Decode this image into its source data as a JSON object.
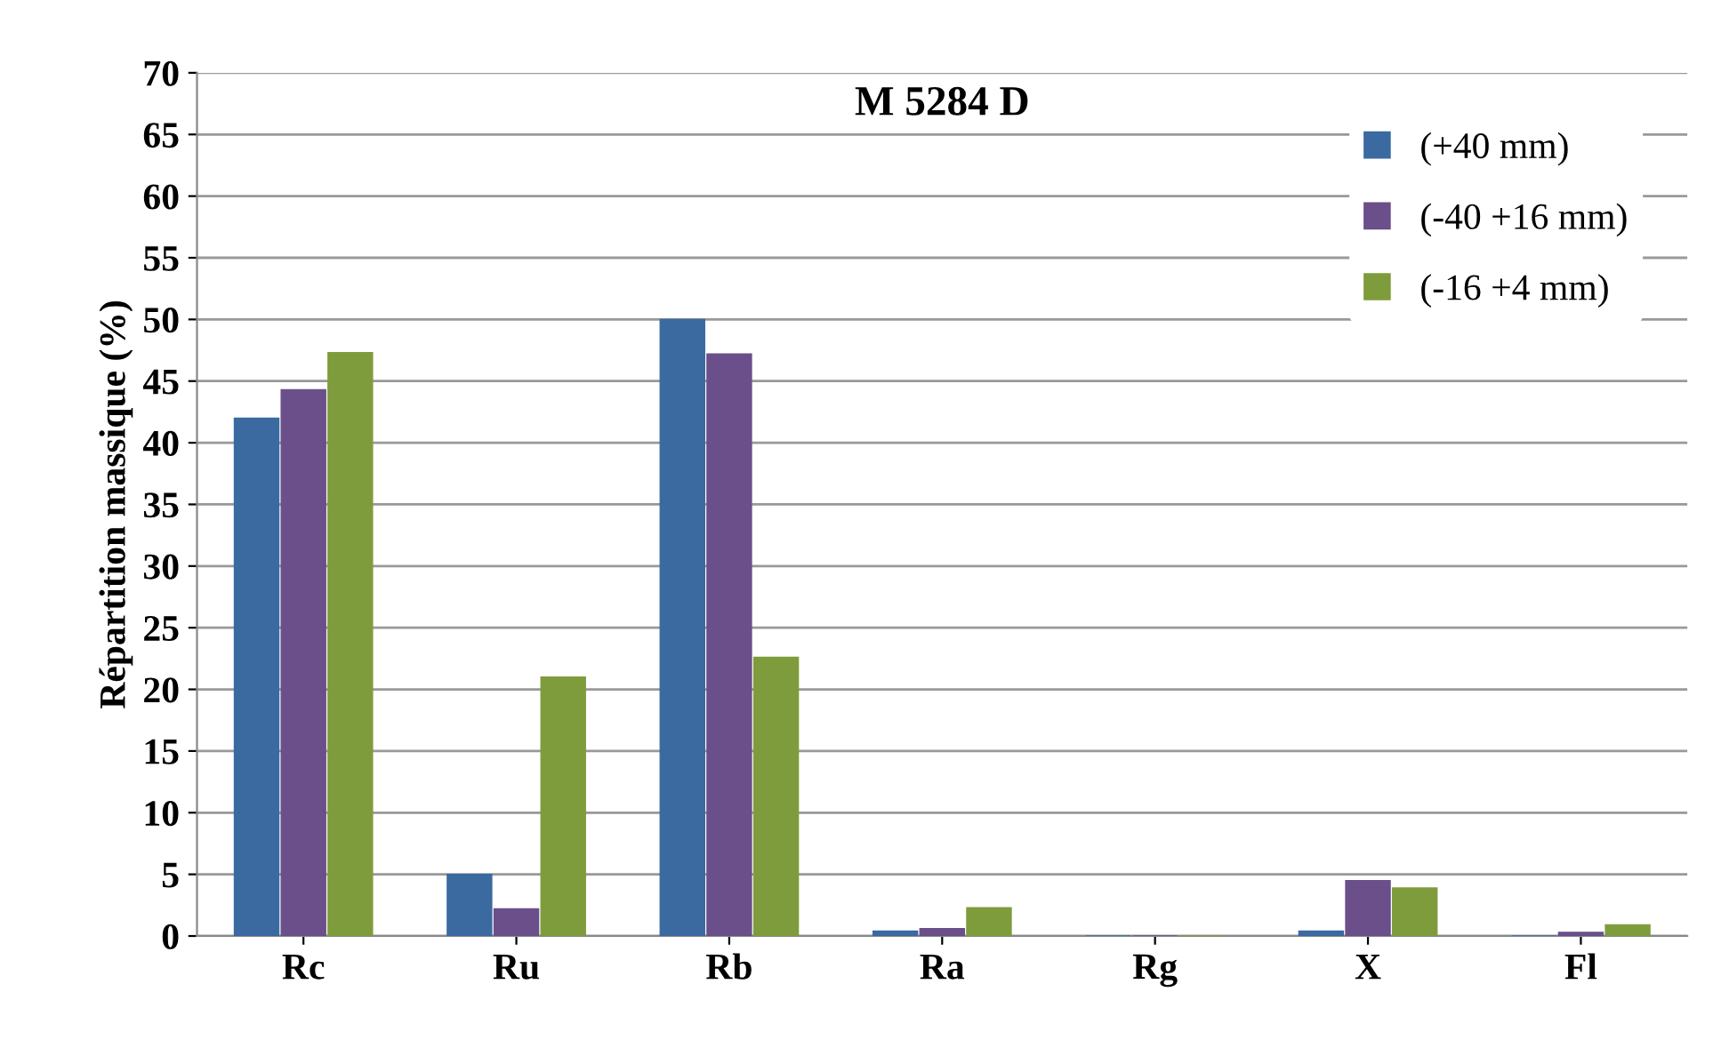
{
  "chart_data": {
    "type": "bar",
    "title": "M 5284 D",
    "ylabel": "Répartition massique (%)",
    "categories": [
      "Rc",
      "Ru",
      "Rb",
      "Ra",
      "Rg",
      "X",
      "Fl"
    ],
    "series": [
      {
        "name": "(+40 mm)",
        "color": "#3a6aa0",
        "values": [
          42,
          5,
          50,
          0.4,
          0,
          0.4,
          0
        ]
      },
      {
        "name": "(-40 +16 mm)",
        "color": "#6a4f8a",
        "values": [
          44.3,
          2.2,
          47.2,
          0.6,
          0,
          4.5,
          0.3
        ]
      },
      {
        "name": "(-16 +4 mm)",
        "color": "#7f9c3c",
        "values": [
          47.3,
          21,
          22.6,
          2.3,
          0,
          3.9,
          0.9
        ]
      }
    ],
    "ylim": [
      0,
      70
    ],
    "yticks": [
      0,
      5,
      10,
      15,
      20,
      25,
      30,
      35,
      40,
      45,
      50,
      55,
      60,
      65,
      70
    ],
    "grid": "y",
    "legend": "top right"
  }
}
